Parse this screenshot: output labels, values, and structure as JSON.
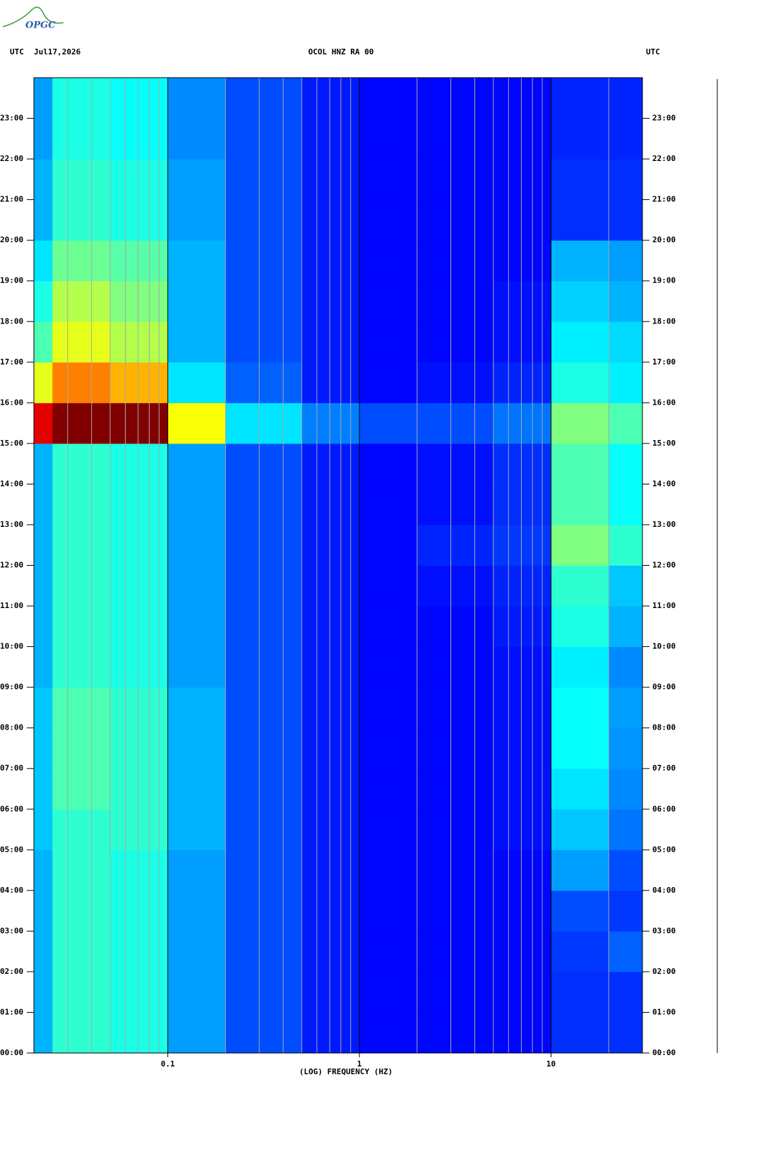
{
  "logo": "OPGC",
  "chart_data": {
    "type": "heatmap",
    "title": "OCOL HNZ RA 00",
    "timezone_left": "UTC",
    "date": "Jul17,2026",
    "timezone_right": "UTC",
    "xlabel": "(LOG) FREQUENCY (HZ)",
    "xscale": "log",
    "xlim": [
      0.02,
      30
    ],
    "xticks": [
      0.1,
      1,
      10
    ],
    "xgrid_minor": [
      0.03,
      0.04,
      0.05,
      0.06,
      0.07,
      0.08,
      0.09,
      0.2,
      0.3,
      0.4,
      0.5,
      0.6,
      0.7,
      0.8,
      0.9,
      2,
      3,
      4,
      5,
      6,
      7,
      8,
      9,
      20
    ],
    "ylim": [
      0,
      24
    ],
    "yticks": [
      {
        "value": 0,
        "label": "00:00"
      },
      {
        "value": 1,
        "label": "01:00"
      },
      {
        "value": 2,
        "label": "02:00"
      },
      {
        "value": 3,
        "label": "03:00"
      },
      {
        "value": 4,
        "label": "04:00"
      },
      {
        "value": 5,
        "label": "05:00"
      },
      {
        "value": 6,
        "label": "06:00"
      },
      {
        "value": 7,
        "label": "07:00"
      },
      {
        "value": 8,
        "label": "08:00"
      },
      {
        "value": 9,
        "label": "09:00"
      },
      {
        "value": 10,
        "label": "10:00"
      },
      {
        "value": 11,
        "label": "11:00"
      },
      {
        "value": 12,
        "label": "12:00"
      },
      {
        "value": 13,
        "label": "13:00"
      },
      {
        "value": 14,
        "label": "14:00"
      },
      {
        "value": 15,
        "label": "15:00"
      },
      {
        "value": 16,
        "label": "16:00"
      },
      {
        "value": 17,
        "label": "17:00"
      },
      {
        "value": 18,
        "label": "18:00"
      },
      {
        "value": 19,
        "label": "19:00"
      },
      {
        "value": 20,
        "label": "20:00"
      },
      {
        "value": 21,
        "label": "21:00"
      },
      {
        "value": 22,
        "label": "22:00"
      },
      {
        "value": 23,
        "label": "23:00"
      }
    ],
    "colormap": "jet",
    "zlim": [
      0,
      1
    ],
    "x_bins": [
      0.02,
      0.025,
      0.05,
      0.1,
      0.2,
      0.5,
      1,
      2,
      5,
      10,
      20,
      30
    ],
    "y_bins": [
      0,
      1,
      2,
      3,
      4,
      5,
      6,
      7,
      8,
      9,
      10,
      11,
      12,
      13,
      14,
      15,
      16,
      17,
      18,
      19,
      20,
      21,
      22,
      23,
      24
    ],
    "z": [
      [
        0.3,
        0.42,
        0.4,
        0.28,
        0.2,
        0.15,
        0.13,
        0.13,
        0.13,
        0.17,
        0.17
      ],
      [
        0.3,
        0.42,
        0.4,
        0.28,
        0.2,
        0.15,
        0.13,
        0.13,
        0.13,
        0.17,
        0.17
      ],
      [
        0.3,
        0.42,
        0.4,
        0.28,
        0.2,
        0.15,
        0.13,
        0.13,
        0.13,
        0.18,
        0.22
      ],
      [
        0.3,
        0.42,
        0.4,
        0.28,
        0.2,
        0.15,
        0.13,
        0.13,
        0.13,
        0.2,
        0.18
      ],
      [
        0.3,
        0.42,
        0.4,
        0.28,
        0.2,
        0.15,
        0.13,
        0.13,
        0.13,
        0.28,
        0.2
      ],
      [
        0.32,
        0.42,
        0.42,
        0.3,
        0.2,
        0.15,
        0.13,
        0.13,
        0.14,
        0.32,
        0.24
      ],
      [
        0.32,
        0.45,
        0.42,
        0.3,
        0.2,
        0.15,
        0.13,
        0.13,
        0.14,
        0.35,
        0.26
      ],
      [
        0.32,
        0.45,
        0.42,
        0.3,
        0.2,
        0.15,
        0.13,
        0.13,
        0.14,
        0.38,
        0.27
      ],
      [
        0.32,
        0.45,
        0.42,
        0.3,
        0.2,
        0.15,
        0.13,
        0.13,
        0.14,
        0.38,
        0.28
      ],
      [
        0.3,
        0.42,
        0.4,
        0.28,
        0.2,
        0.15,
        0.13,
        0.13,
        0.14,
        0.36,
        0.26
      ],
      [
        0.3,
        0.42,
        0.4,
        0.28,
        0.2,
        0.15,
        0.13,
        0.13,
        0.15,
        0.4,
        0.3
      ],
      [
        0.3,
        0.42,
        0.4,
        0.28,
        0.2,
        0.15,
        0.13,
        0.14,
        0.16,
        0.42,
        0.32
      ],
      [
        0.3,
        0.42,
        0.4,
        0.28,
        0.2,
        0.15,
        0.13,
        0.16,
        0.18,
        0.5,
        0.42
      ],
      [
        0.3,
        0.42,
        0.4,
        0.28,
        0.2,
        0.15,
        0.13,
        0.14,
        0.17,
        0.45,
        0.38
      ],
      [
        0.3,
        0.42,
        0.4,
        0.28,
        0.2,
        0.15,
        0.13,
        0.14,
        0.17,
        0.45,
        0.38
      ],
      [
        0.9,
        1,
        1,
        0.62,
        0.35,
        0.25,
        0.2,
        0.2,
        0.24,
        0.5,
        0.45
      ],
      [
        0.6,
        0.75,
        0.7,
        0.35,
        0.22,
        0.15,
        0.13,
        0.14,
        0.16,
        0.4,
        0.36
      ],
      [
        0.45,
        0.6,
        0.55,
        0.3,
        0.2,
        0.15,
        0.13,
        0.13,
        0.14,
        0.36,
        0.34
      ],
      [
        0.4,
        0.55,
        0.5,
        0.3,
        0.2,
        0.15,
        0.13,
        0.13,
        0.14,
        0.33,
        0.3
      ],
      [
        0.35,
        0.48,
        0.46,
        0.3,
        0.2,
        0.15,
        0.13,
        0.13,
        0.13,
        0.3,
        0.28
      ],
      [
        0.3,
        0.42,
        0.4,
        0.28,
        0.2,
        0.15,
        0.13,
        0.13,
        0.13,
        0.17,
        0.17
      ],
      [
        0.3,
        0.42,
        0.4,
        0.28,
        0.2,
        0.15,
        0.13,
        0.13,
        0.13,
        0.17,
        0.17
      ],
      [
        0.28,
        0.4,
        0.38,
        0.26,
        0.2,
        0.15,
        0.13,
        0.13,
        0.13,
        0.16,
        0.16
      ],
      [
        0.28,
        0.4,
        0.38,
        0.26,
        0.2,
        0.15,
        0.13,
        0.13,
        0.13,
        0.16,
        0.16
      ]
    ]
  }
}
